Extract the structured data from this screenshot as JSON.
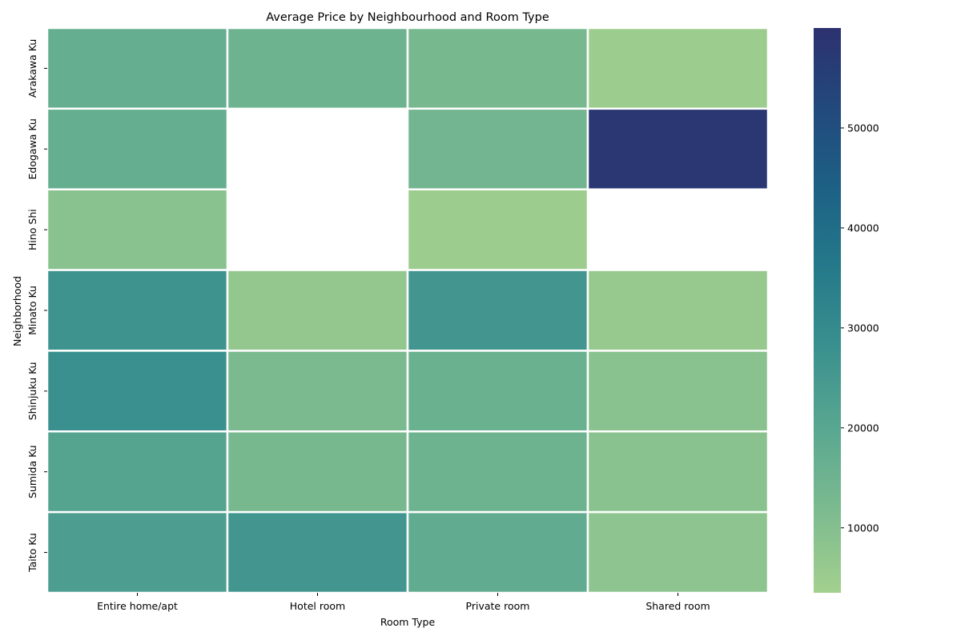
{
  "chart_data": {
    "type": "heatmap",
    "title": "Average Price by Neighbourhood and Room Type",
    "xlabel": "Room Type",
    "ylabel": "Neighborhood",
    "x_categories": [
      "Entire home/apt",
      "Hotel room",
      "Private room",
      "Shared room"
    ],
    "y_categories": [
      "Arakawa Ku",
      "Edogawa Ku",
      "Hino Shi",
      "Minato Ku",
      "Shinjuku Ku",
      "Sumida Ku",
      "Taito Ku"
    ],
    "values": [
      [
        17000,
        15000,
        13000,
        5000
      ],
      [
        17000,
        null,
        14000,
        58000
      ],
      [
        9000,
        null,
        5000,
        null
      ],
      [
        27000,
        7000,
        26000,
        6000
      ],
      [
        28000,
        12000,
        16000,
        9000
      ],
      [
        21000,
        13000,
        15000,
        9000
      ],
      [
        23000,
        26000,
        18000,
        8000
      ]
    ],
    "colorbar": {
      "min": 3500,
      "max": 60000,
      "ticks": [
        10000,
        20000,
        30000,
        40000,
        50000
      ],
      "tick_labels": [
        "10000",
        "20000",
        "30000",
        "40000",
        "50000"
      ]
    },
    "colormap": {
      "name": "crest",
      "stops": [
        "#a3d08e",
        "#7dbb8f",
        "#5aa891",
        "#3b918e",
        "#257a8a",
        "#1d6185",
        "#22497c",
        "#2c3170"
      ]
    },
    "grid": false,
    "legend": "colorbar-right"
  }
}
